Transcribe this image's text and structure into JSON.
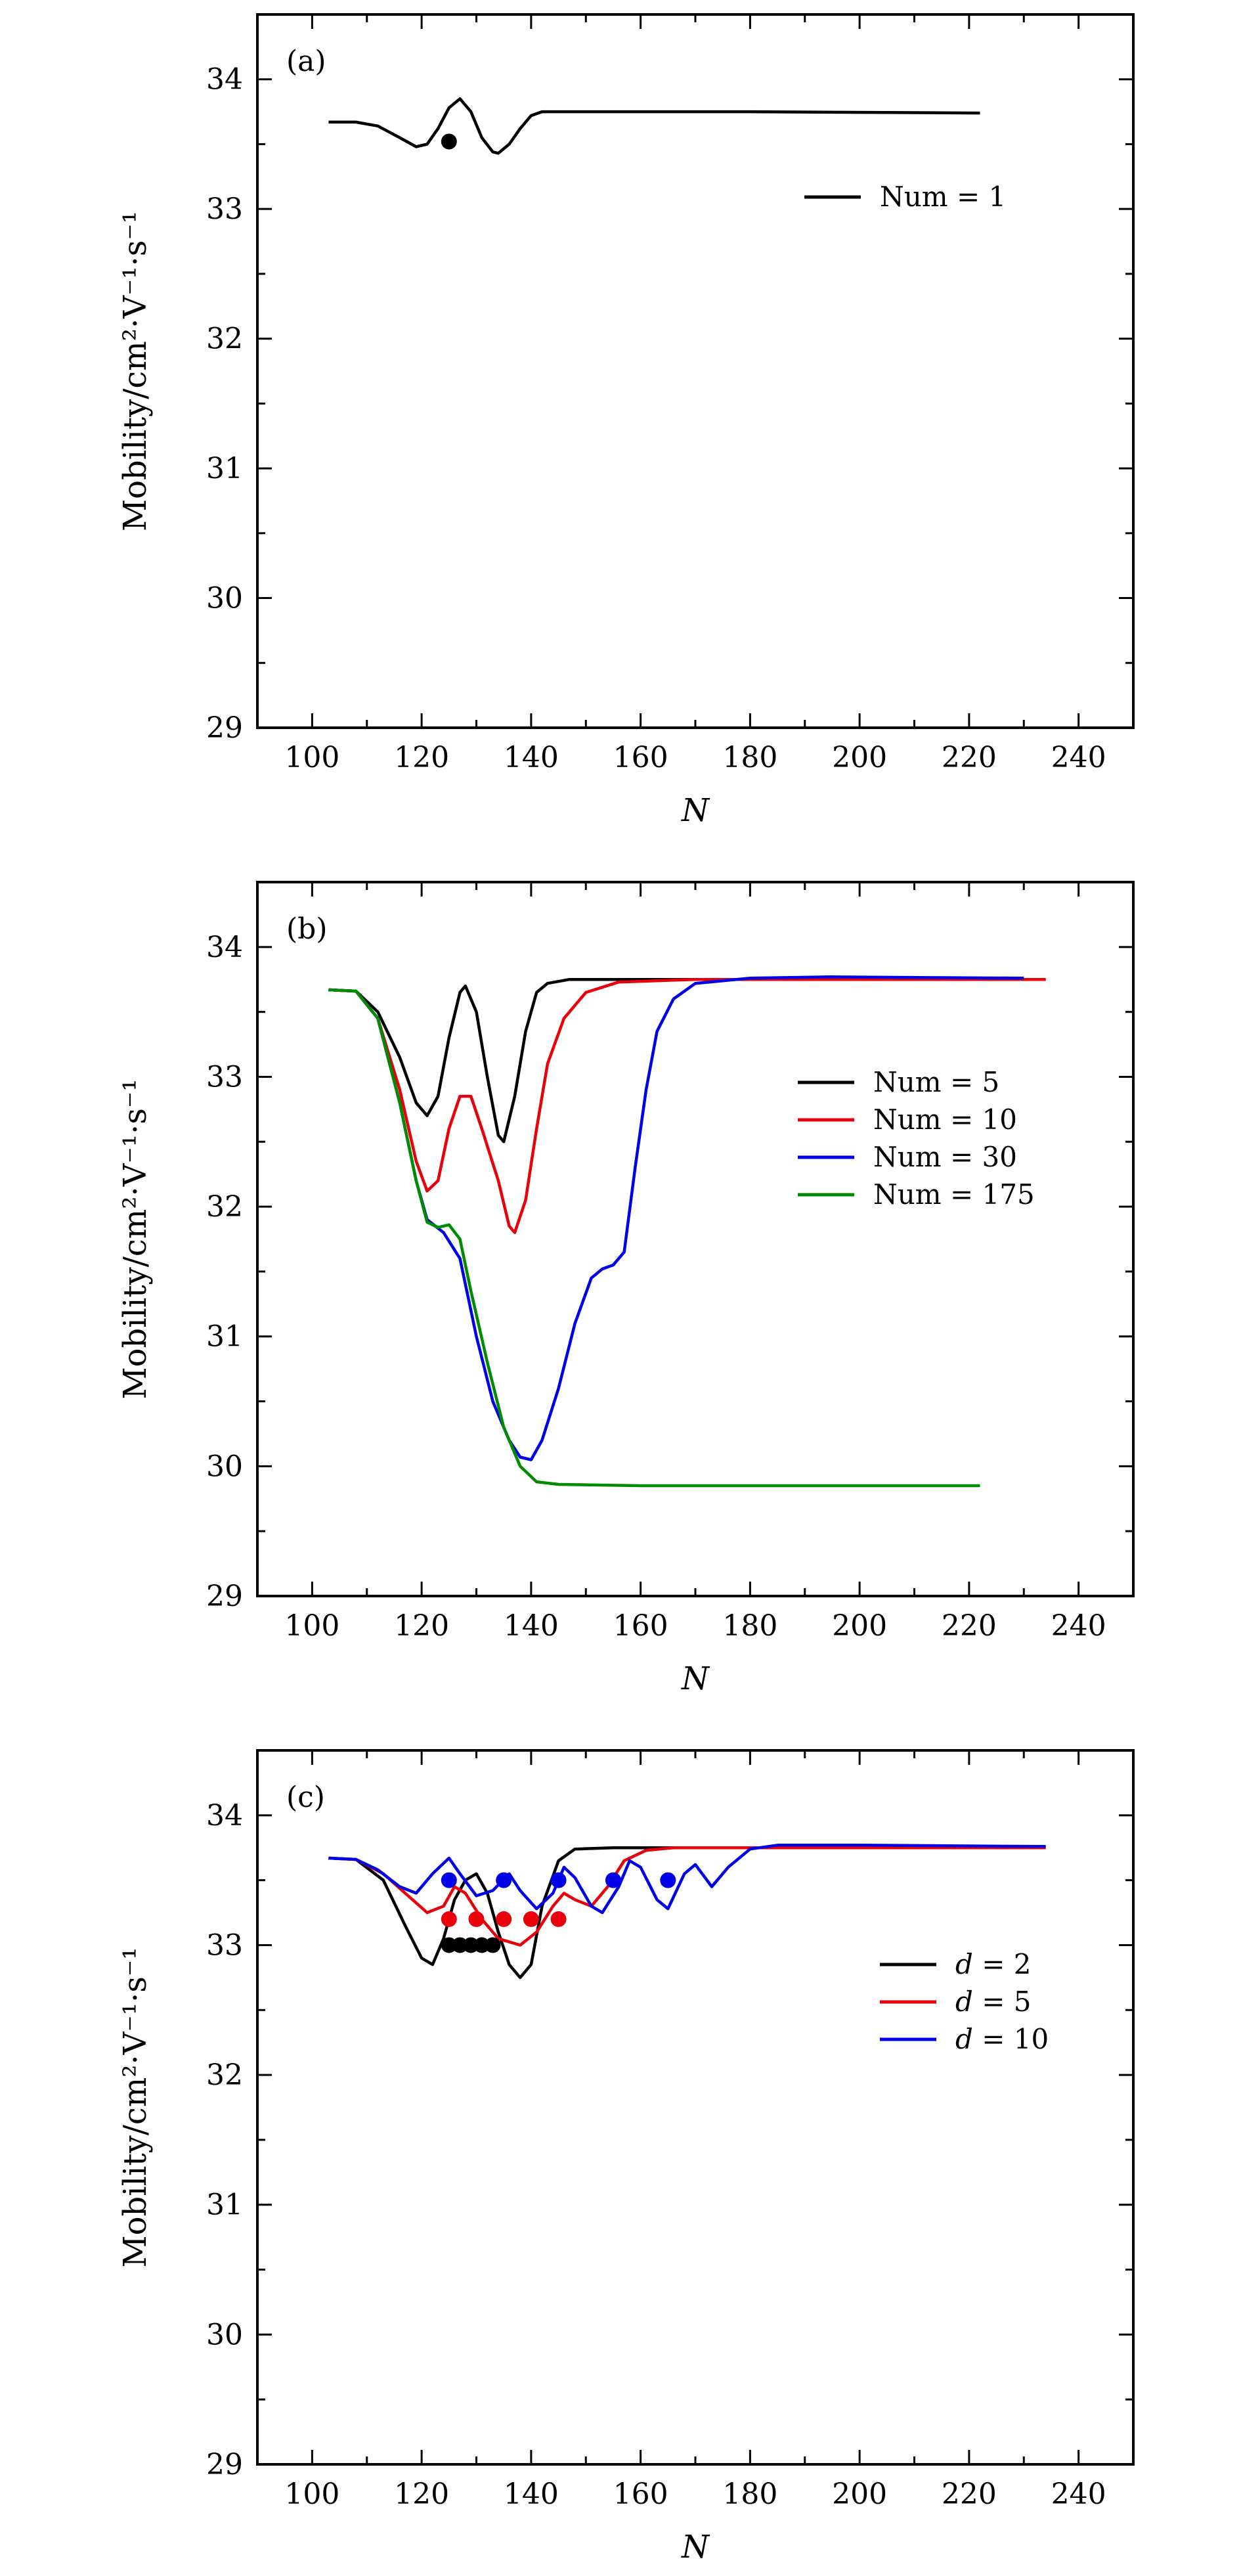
{
  "chart_data": [
    {
      "type": "line",
      "panel_label": "(a)",
      "xlabel": "N",
      "ylabel": "Mobility/cm²·V⁻¹·s⁻¹",
      "xlim": [
        90,
        250
      ],
      "ylim": [
        29,
        34.5
      ],
      "xticks": [
        100,
        120,
        140,
        160,
        180,
        200,
        220,
        240
      ],
      "yticks": [
        29,
        30,
        31,
        32,
        33,
        34
      ],
      "legend_position": "upper-right",
      "series": [
        {
          "name": "Num = 1",
          "color": "#000000",
          "points": [
            [
              103,
              33.67
            ],
            [
              108,
              33.67
            ],
            [
              112,
              33.64
            ],
            [
              116,
              33.55
            ],
            [
              119,
              33.48
            ],
            [
              121,
              33.5
            ],
            [
              123,
              33.62
            ],
            [
              125,
              33.78
            ],
            [
              127,
              33.85
            ],
            [
              129,
              33.75
            ],
            [
              131,
              33.55
            ],
            [
              133,
              33.44
            ],
            [
              134,
              33.43
            ],
            [
              136,
              33.5
            ],
            [
              138,
              33.62
            ],
            [
              140,
              33.72
            ],
            [
              142,
              33.75
            ],
            [
              150,
              33.75
            ],
            [
              180,
              33.75
            ],
            [
              222,
              33.74
            ]
          ]
        }
      ],
      "markers": [
        {
          "color": "#000000",
          "points": [
            [
              125,
              33.52
            ]
          ]
        }
      ]
    },
    {
      "type": "line",
      "panel_label": "(b)",
      "xlabel": "N",
      "ylabel": "Mobility/cm²·V⁻¹·s⁻¹",
      "xlim": [
        90,
        250
      ],
      "ylim": [
        29,
        34.5
      ],
      "xticks": [
        100,
        120,
        140,
        160,
        180,
        200,
        220,
        240
      ],
      "yticks": [
        29,
        30,
        31,
        32,
        33,
        34
      ],
      "legend_position": "right",
      "series": [
        {
          "name": "Num = 5",
          "color": "#000000",
          "points": [
            [
              103,
              33.67
            ],
            [
              108,
              33.66
            ],
            [
              112,
              33.5
            ],
            [
              116,
              33.15
            ],
            [
              119,
              32.8
            ],
            [
              121,
              32.7
            ],
            [
              123,
              32.85
            ],
            [
              125,
              33.3
            ],
            [
              127,
              33.65
            ],
            [
              128,
              33.7
            ],
            [
              130,
              33.5
            ],
            [
              132,
              33.0
            ],
            [
              134,
              32.55
            ],
            [
              135,
              32.5
            ],
            [
              137,
              32.85
            ],
            [
              139,
              33.35
            ],
            [
              141,
              33.65
            ],
            [
              143,
              33.72
            ],
            [
              147,
              33.75
            ],
            [
              160,
              33.75
            ],
            [
              234,
              33.75
            ]
          ]
        },
        {
          "name": "Num = 10",
          "color": "#e8000b",
          "points": [
            [
              103,
              33.67
            ],
            [
              108,
              33.66
            ],
            [
              112,
              33.45
            ],
            [
              116,
              32.9
            ],
            [
              119,
              32.35
            ],
            [
              121,
              32.12
            ],
            [
              123,
              32.2
            ],
            [
              125,
              32.6
            ],
            [
              127,
              32.85
            ],
            [
              129,
              32.85
            ],
            [
              131,
              32.6
            ],
            [
              134,
              32.2
            ],
            [
              136,
              31.85
            ],
            [
              137,
              31.8
            ],
            [
              139,
              32.05
            ],
            [
              141,
              32.6
            ],
            [
              143,
              33.1
            ],
            [
              146,
              33.45
            ],
            [
              150,
              33.65
            ],
            [
              156,
              33.73
            ],
            [
              170,
              33.75
            ],
            [
              234,
              33.75
            ]
          ]
        },
        {
          "name": "Num = 30",
          "color": "#0000e6",
          "points": [
            [
              103,
              33.67
            ],
            [
              108,
              33.66
            ],
            [
              112,
              33.45
            ],
            [
              116,
              32.8
            ],
            [
              119,
              32.2
            ],
            [
              121,
              31.9
            ],
            [
              124,
              31.8
            ],
            [
              127,
              31.6
            ],
            [
              130,
              31.0
            ],
            [
              133,
              30.5
            ],
            [
              136,
              30.2
            ],
            [
              138,
              30.07
            ],
            [
              140,
              30.05
            ],
            [
              142,
              30.2
            ],
            [
              145,
              30.6
            ],
            [
              148,
              31.1
            ],
            [
              151,
              31.45
            ],
            [
              153,
              31.52
            ],
            [
              155,
              31.55
            ],
            [
              157,
              31.65
            ],
            [
              159,
              32.3
            ],
            [
              161,
              32.9
            ],
            [
              163,
              33.35
            ],
            [
              166,
              33.6
            ],
            [
              170,
              33.72
            ],
            [
              180,
              33.76
            ],
            [
              195,
              33.77
            ],
            [
              230,
              33.76
            ]
          ]
        },
        {
          "name": "Num = 175",
          "color": "#008c00",
          "points": [
            [
              103,
              33.67
            ],
            [
              108,
              33.66
            ],
            [
              112,
              33.45
            ],
            [
              116,
              32.8
            ],
            [
              119,
              32.2
            ],
            [
              121,
              31.88
            ],
            [
              123,
              31.84
            ],
            [
              125,
              31.86
            ],
            [
              127,
              31.75
            ],
            [
              129,
              31.35
            ],
            [
              132,
              30.8
            ],
            [
              135,
              30.3
            ],
            [
              138,
              30.0
            ],
            [
              141,
              29.88
            ],
            [
              145,
              29.86
            ],
            [
              160,
              29.85
            ],
            [
              190,
              29.85
            ],
            [
              222,
              29.85
            ]
          ]
        }
      ]
    },
    {
      "type": "line",
      "panel_label": "(c)",
      "xlabel": "N",
      "ylabel": "Mobility/cm²·V⁻¹·s⁻¹",
      "xlim": [
        90,
        250
      ],
      "ylim": [
        29,
        34.5
      ],
      "xticks": [
        100,
        120,
        140,
        160,
        180,
        200,
        220,
        240
      ],
      "yticks": [
        29,
        30,
        31,
        32,
        33,
        34
      ],
      "legend_position": "right",
      "series": [
        {
          "name": "d = 2",
          "color": "#000000",
          "points": [
            [
              103,
              33.67
            ],
            [
              108,
              33.66
            ],
            [
              113,
              33.5
            ],
            [
              117,
              33.15
            ],
            [
              120,
              32.9
            ],
            [
              122,
              32.85
            ],
            [
              124,
              33.05
            ],
            [
              126,
              33.35
            ],
            [
              128,
              33.5
            ],
            [
              130,
              33.55
            ],
            [
              132,
              33.4
            ],
            [
              134,
              33.1
            ],
            [
              136,
              32.85
            ],
            [
              138,
              32.75
            ],
            [
              140,
              32.85
            ],
            [
              142,
              33.3
            ],
            [
              145,
              33.65
            ],
            [
              148,
              33.74
            ],
            [
              155,
              33.75
            ],
            [
              234,
              33.75
            ]
          ]
        },
        {
          "name": "d = 5",
          "color": "#e8000b",
          "points": [
            [
              103,
              33.67
            ],
            [
              108,
              33.66
            ],
            [
              113,
              33.55
            ],
            [
              117,
              33.4
            ],
            [
              121,
              33.25
            ],
            [
              124,
              33.3
            ],
            [
              126,
              33.45
            ],
            [
              128,
              33.4
            ],
            [
              131,
              33.2
            ],
            [
              134,
              33.05
            ],
            [
              138,
              33.0
            ],
            [
              141,
              33.1
            ],
            [
              144,
              33.3
            ],
            [
              146,
              33.4
            ],
            [
              148,
              33.35
            ],
            [
              151,
              33.3
            ],
            [
              154,
              33.45
            ],
            [
              157,
              33.65
            ],
            [
              161,
              33.73
            ],
            [
              166,
              33.75
            ],
            [
              234,
              33.75
            ]
          ]
        },
        {
          "name": "d = 10",
          "color": "#0000e6",
          "points": [
            [
              103,
              33.67
            ],
            [
              108,
              33.66
            ],
            [
              112,
              33.58
            ],
            [
              116,
              33.45
            ],
            [
              119,
              33.4
            ],
            [
              122,
              33.55
            ],
            [
              125,
              33.67
            ],
            [
              127,
              33.55
            ],
            [
              130,
              33.38
            ],
            [
              133,
              33.42
            ],
            [
              136,
              33.55
            ],
            [
              138,
              33.42
            ],
            [
              141,
              33.28
            ],
            [
              144,
              33.4
            ],
            [
              146,
              33.6
            ],
            [
              148,
              33.52
            ],
            [
              151,
              33.3
            ],
            [
              153,
              33.25
            ],
            [
              156,
              33.45
            ],
            [
              158,
              33.65
            ],
            [
              160,
              33.6
            ],
            [
              163,
              33.35
            ],
            [
              165,
              33.28
            ],
            [
              168,
              33.55
            ],
            [
              170,
              33.62
            ],
            [
              173,
              33.45
            ],
            [
              176,
              33.6
            ],
            [
              180,
              33.74
            ],
            [
              185,
              33.77
            ],
            [
              200,
              33.77
            ],
            [
              234,
              33.76
            ]
          ]
        }
      ],
      "markers": [
        {
          "color": "#000000",
          "points": [
            [
              125,
              33.0
            ],
            [
              127,
              33.0
            ],
            [
              129,
              33.0
            ],
            [
              131,
              33.0
            ],
            [
              133,
              33.0
            ]
          ]
        },
        {
          "color": "#e8000b",
          "points": [
            [
              125,
              33.2
            ],
            [
              130,
              33.2
            ],
            [
              135,
              33.2
            ],
            [
              140,
              33.2
            ],
            [
              145,
              33.2
            ]
          ]
        },
        {
          "color": "#0000e6",
          "points": [
            [
              125,
              33.5
            ],
            [
              135,
              33.5
            ],
            [
              145,
              33.5
            ],
            [
              155,
              33.5
            ],
            [
              165,
              33.5
            ]
          ]
        }
      ]
    }
  ]
}
